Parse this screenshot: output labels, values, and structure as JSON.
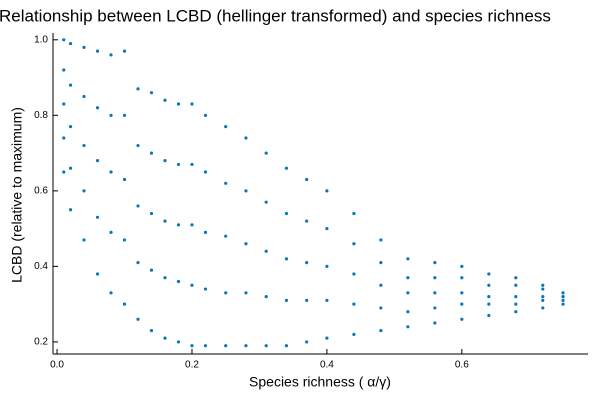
{
  "chart_data": {
    "type": "scatter",
    "title": "Relationship between LCBD (hellinger transformed) and species richness",
    "xlabel": "Species richness (  α/γ)",
    "ylabel": "LCBD (relative to maximum)",
    "xlim": [
      -0.006,
      0.787
    ],
    "ylim": [
      0.168,
      1.018
    ],
    "xticks": [
      {
        "value": 0,
        "label": "0.0"
      },
      0.2,
      0.4,
      0.6
    ],
    "yticks": [
      0.2,
      0.4,
      0.6,
      0.8,
      {
        "value": 1,
        "label": "1.0"
      }
    ],
    "grid": false,
    "series": [
      {
        "color": "#0a77b8",
        "x": [
          0.01,
          0.01,
          0.01,
          0.01,
          0.01,
          0.02,
          0.02,
          0.02,
          0.02,
          0.02,
          0.04,
          0.04,
          0.04,
          0.04,
          0.04,
          0.06,
          0.06,
          0.06,
          0.06,
          0.06,
          0.08,
          0.08,
          0.08,
          0.08,
          0.08,
          0.1,
          0.1,
          0.1,
          0.1,
          0.1,
          0.12,
          0.12,
          0.12,
          0.12,
          0.12,
          0.14,
          0.14,
          0.14,
          0.14,
          0.14,
          0.16,
          0.16,
          0.16,
          0.16,
          0.16,
          0.18,
          0.18,
          0.18,
          0.18,
          0.18,
          0.2,
          0.2,
          0.2,
          0.2,
          0.2,
          0.22,
          0.22,
          0.22,
          0.22,
          0.22,
          0.25,
          0.25,
          0.25,
          0.25,
          0.25,
          0.28,
          0.28,
          0.28,
          0.28,
          0.28,
          0.31,
          0.31,
          0.31,
          0.31,
          0.31,
          0.34,
          0.34,
          0.34,
          0.34,
          0.34,
          0.37,
          0.37,
          0.37,
          0.37,
          0.37,
          0.4,
          0.4,
          0.4,
          0.4,
          0.4,
          0.44,
          0.44,
          0.44,
          0.44,
          0.44,
          0.48,
          0.48,
          0.48,
          0.48,
          0.48,
          0.52,
          0.52,
          0.52,
          0.52,
          0.52,
          0.56,
          0.56,
          0.56,
          0.56,
          0.56,
          0.6,
          0.6,
          0.6,
          0.6,
          0.6,
          0.64,
          0.64,
          0.64,
          0.64,
          0.64,
          0.68,
          0.68,
          0.68,
          0.68,
          0.68,
          0.72,
          0.72,
          0.72,
          0.72,
          0.72,
          0.75,
          0.75,
          0.75,
          0.75,
          0.75
        ],
        "values": [
          0.65,
          0.74,
          0.83,
          0.92,
          1.0,
          0.55,
          0.66,
          0.77,
          0.88,
          0.99,
          0.47,
          0.6,
          0.72,
          0.85,
          0.98,
          0.38,
          0.53,
          0.68,
          0.82,
          0.97,
          0.33,
          0.49,
          0.65,
          0.8,
          0.96,
          0.3,
          0.47,
          0.63,
          0.8,
          0.97,
          0.26,
          0.41,
          0.56,
          0.72,
          0.87,
          0.23,
          0.39,
          0.54,
          0.7,
          0.86,
          0.21,
          0.37,
          0.52,
          0.68,
          0.84,
          0.2,
          0.36,
          0.51,
          0.67,
          0.83,
          0.19,
          0.35,
          0.51,
          0.67,
          0.83,
          0.19,
          0.34,
          0.49,
          0.65,
          0.8,
          0.19,
          0.33,
          0.48,
          0.62,
          0.77,
          0.19,
          0.33,
          0.46,
          0.6,
          0.74,
          0.19,
          0.32,
          0.44,
          0.57,
          0.7,
          0.19,
          0.31,
          0.42,
          0.54,
          0.66,
          0.2,
          0.31,
          0.41,
          0.52,
          0.63,
          0.21,
          0.31,
          0.4,
          0.5,
          0.6,
          0.22,
          0.3,
          0.38,
          0.46,
          0.54,
          0.23,
          0.29,
          0.35,
          0.41,
          0.47,
          0.24,
          0.28,
          0.33,
          0.37,
          0.42,
          0.25,
          0.29,
          0.33,
          0.37,
          0.41,
          0.26,
          0.3,
          0.33,
          0.37,
          0.4,
          0.27,
          0.3,
          0.32,
          0.35,
          0.38,
          0.28,
          0.3,
          0.32,
          0.35,
          0.37,
          0.29,
          0.31,
          0.32,
          0.34,
          0.35,
          0.3,
          0.31,
          0.32,
          0.32,
          0.33
        ]
      }
    ]
  }
}
